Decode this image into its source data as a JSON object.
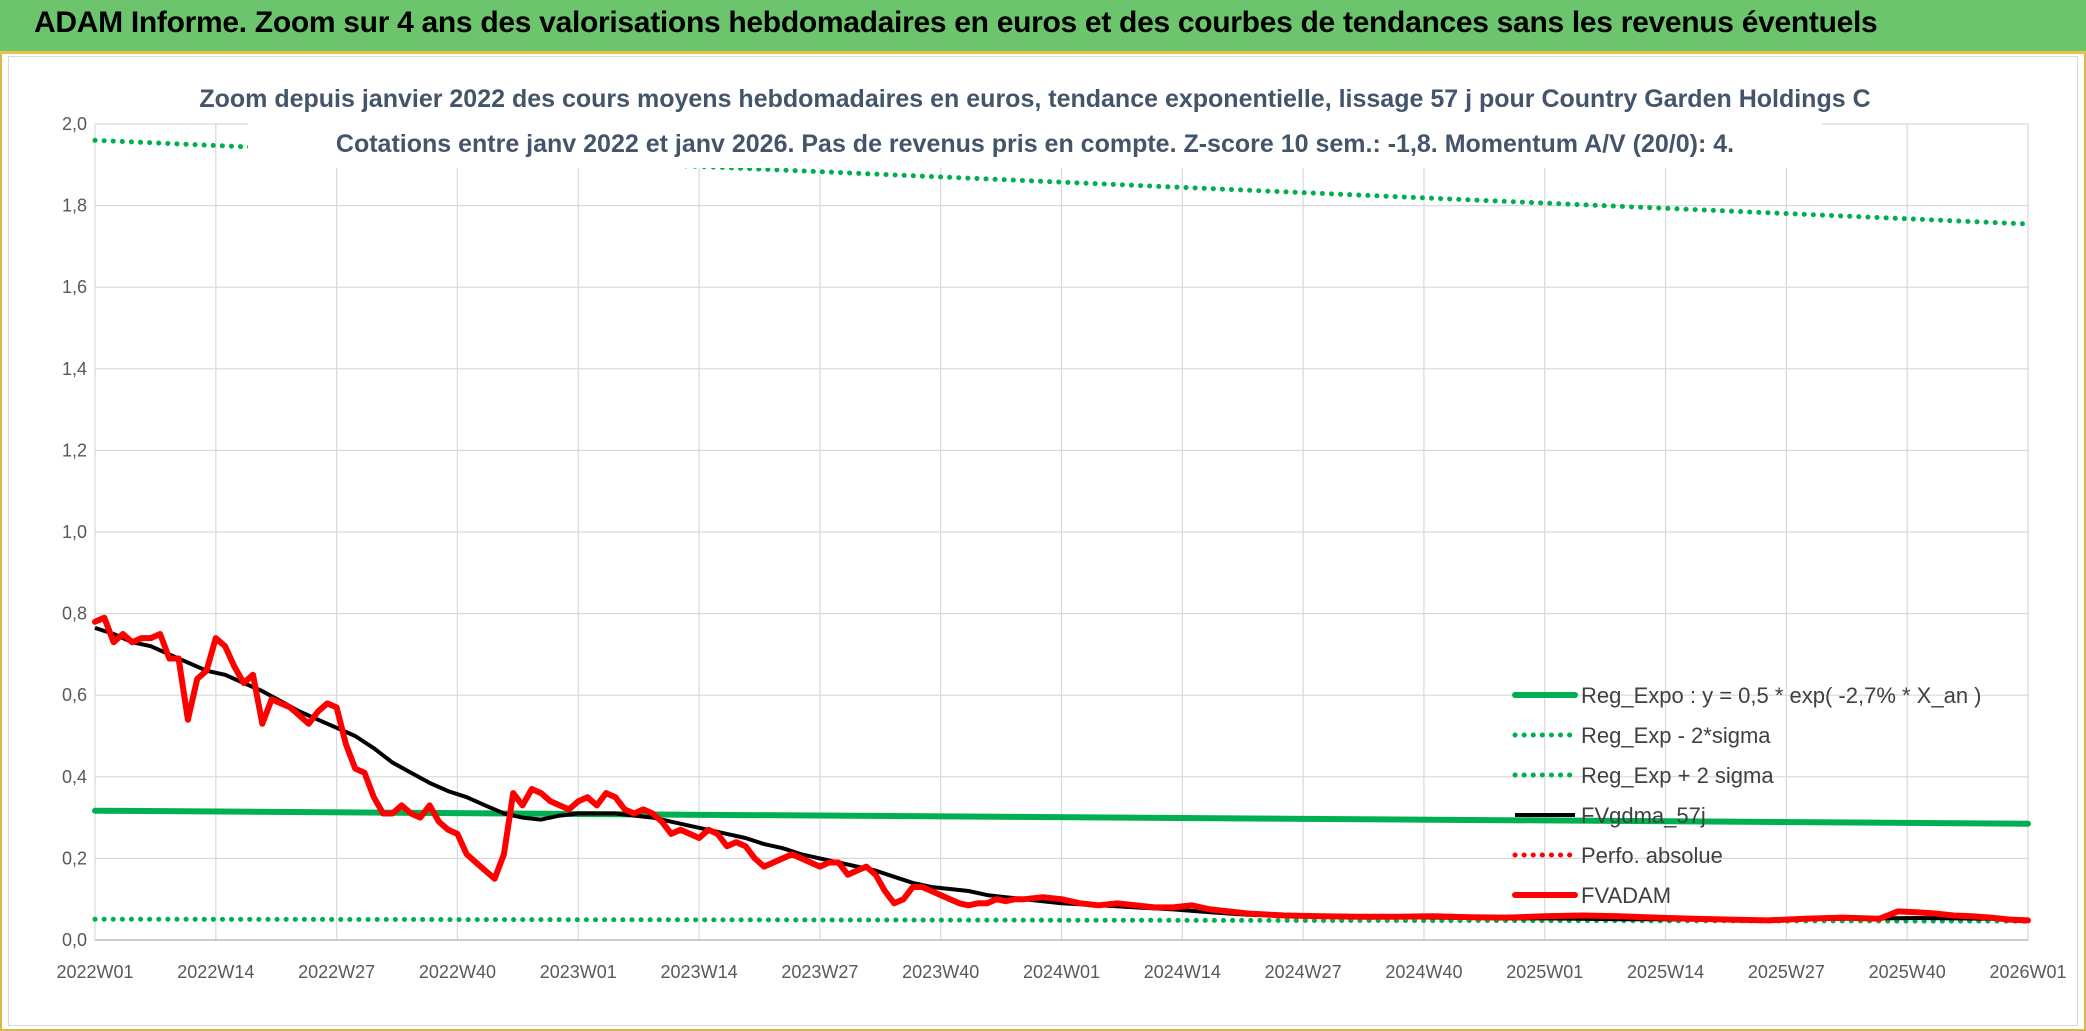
{
  "banner": {
    "title": "ADAM Informe. Zoom sur 4 ans des valorisations hebdomadaires en euros et des courbes de tendances sans les revenus éventuels"
  },
  "chart_data": {
    "type": "line",
    "title_line1": "Zoom depuis janvier 2022 des cours moyens hebdomadaires en euros, tendance exponentielle, lissage 57 j pour Country Garden Holdings C",
    "title_line2": "Cotations entre janv 2022 et janv 2026. Pas de revenus pris en compte. Z-score 10 sem.: -1,8. Momentum A/V (20/0): 4.",
    "x_tick_labels": [
      "2022W01",
      "2022W14",
      "2022W27",
      "2022W40",
      "2023W01",
      "2023W14",
      "2023W27",
      "2023W40",
      "2024W01",
      "2024W14",
      "2024W27",
      "2024W40",
      "2025W01",
      "2025W14",
      "2025W27",
      "2025W40",
      "2026W01"
    ],
    "y_tick_labels": [
      "0,0",
      "0,2",
      "0,4",
      "0,6",
      "0,8",
      "1,0",
      "1,2",
      "1,4",
      "1,6",
      "1,8",
      "2,0"
    ],
    "ylim": [
      0,
      2.0
    ],
    "x_range_weeks": [
      0,
      208
    ],
    "grid": true,
    "legend_position": "bottom-right",
    "colors": {
      "reg_expo": "#00b050",
      "reg_minus": "#00b050",
      "reg_plus": "#00b050",
      "fvgdma": "#000000",
      "perfo": "#ff0000",
      "fvadam": "#ff0000",
      "grid": "#d9d9d9"
    },
    "series": [
      {
        "key": "reg_expo",
        "name": "Reg_Expo : y = 0,5 * exp( -2,7% *  X_an )",
        "style": "solid-thick",
        "x": [
          0,
          208
        ],
        "y": [
          0.317,
          0.285
        ]
      },
      {
        "key": "reg_minus",
        "name": "Reg_Exp - 2*sigma",
        "style": "dotted",
        "x": [
          0,
          208
        ],
        "y": [
          0.051,
          0.046
        ]
      },
      {
        "key": "reg_plus",
        "name": "Reg_Exp + 2 sigma",
        "style": "dotted",
        "x": [
          0,
          208
        ],
        "y": [
          1.96,
          1.755
        ]
      },
      {
        "key": "fvgdma",
        "name": "FVgdma_57j",
        "style": "solid-medium",
        "x": [
          0,
          2,
          4,
          6,
          8,
          10,
          12,
          14,
          16,
          18,
          20,
          22,
          24,
          26,
          28,
          30,
          32,
          34,
          36,
          38,
          40,
          42,
          44,
          46,
          48,
          50,
          52,
          54,
          56,
          58,
          60,
          62,
          64,
          66,
          68,
          70,
          72,
          74,
          76,
          78,
          80,
          82,
          84,
          86,
          88,
          90,
          92,
          94,
          96,
          98,
          100,
          104,
          108,
          112,
          116,
          120,
          124,
          128,
          132,
          136,
          140,
          144,
          148,
          152,
          156,
          160,
          164,
          168,
          172,
          176,
          180,
          184,
          188,
          192,
          196,
          200,
          204,
          208
        ],
        "y": [
          0.765,
          0.75,
          0.73,
          0.72,
          0.7,
          0.68,
          0.66,
          0.65,
          0.63,
          0.61,
          0.585,
          0.56,
          0.54,
          0.52,
          0.5,
          0.47,
          0.435,
          0.41,
          0.385,
          0.365,
          0.35,
          0.33,
          0.31,
          0.3,
          0.295,
          0.305,
          0.31,
          0.31,
          0.31,
          0.305,
          0.3,
          0.29,
          0.28,
          0.27,
          0.26,
          0.25,
          0.235,
          0.225,
          0.21,
          0.2,
          0.19,
          0.18,
          0.17,
          0.155,
          0.14,
          0.13,
          0.125,
          0.12,
          0.11,
          0.105,
          0.1,
          0.09,
          0.085,
          0.08,
          0.075,
          0.068,
          0.062,
          0.06,
          0.058,
          0.057,
          0.056,
          0.055,
          0.054,
          0.053,
          0.053,
          0.052,
          0.051,
          0.051,
          0.05,
          0.05,
          0.05,
          0.051,
          0.052,
          0.053,
          0.054,
          0.053,
          0.052,
          0.05
        ]
      },
      {
        "key": "perfo",
        "name": "Perfo. absolue",
        "style": "dotted",
        "x": [],
        "y": []
      },
      {
        "key": "fvadam",
        "name": "FVADAM",
        "style": "solid-thick",
        "x": [
          0,
          1,
          2,
          3,
          4,
          5,
          6,
          7,
          8,
          9,
          10,
          11,
          12,
          13,
          14,
          15,
          16,
          17,
          18,
          19,
          20,
          21,
          22,
          23,
          24,
          25,
          26,
          27,
          28,
          29,
          30,
          31,
          32,
          33,
          34,
          35,
          36,
          37,
          38,
          39,
          40,
          41,
          42,
          43,
          44,
          45,
          46,
          47,
          48,
          49,
          50,
          51,
          52,
          53,
          54,
          55,
          56,
          57,
          58,
          59,
          60,
          61,
          62,
          63,
          64,
          65,
          66,
          67,
          68,
          69,
          70,
          71,
          72,
          73,
          74,
          75,
          76,
          77,
          78,
          79,
          80,
          81,
          82,
          83,
          84,
          85,
          86,
          87,
          88,
          89,
          90,
          91,
          92,
          93,
          94,
          95,
          96,
          97,
          98,
          99,
          100,
          102,
          104,
          106,
          108,
          110,
          112,
          114,
          116,
          118,
          120,
          124,
          128,
          132,
          136,
          140,
          144,
          148,
          152,
          156,
          160,
          164,
          168,
          172,
          176,
          180,
          184,
          188,
          192,
          194,
          196,
          198,
          200,
          202,
          204,
          206,
          208
        ],
        "y": [
          0.78,
          0.79,
          0.73,
          0.75,
          0.73,
          0.74,
          0.74,
          0.75,
          0.69,
          0.69,
          0.54,
          0.64,
          0.66,
          0.74,
          0.72,
          0.67,
          0.63,
          0.65,
          0.53,
          0.59,
          0.58,
          0.57,
          0.55,
          0.53,
          0.56,
          0.58,
          0.57,
          0.48,
          0.42,
          0.41,
          0.35,
          0.31,
          0.31,
          0.33,
          0.31,
          0.3,
          0.33,
          0.29,
          0.27,
          0.26,
          0.21,
          0.19,
          0.17,
          0.15,
          0.21,
          0.36,
          0.33,
          0.37,
          0.36,
          0.34,
          0.33,
          0.32,
          0.34,
          0.35,
          0.33,
          0.36,
          0.35,
          0.32,
          0.31,
          0.32,
          0.31,
          0.29,
          0.26,
          0.27,
          0.26,
          0.25,
          0.27,
          0.26,
          0.23,
          0.24,
          0.23,
          0.2,
          0.18,
          0.19,
          0.2,
          0.21,
          0.2,
          0.19,
          0.18,
          0.19,
          0.19,
          0.16,
          0.17,
          0.18,
          0.16,
          0.12,
          0.09,
          0.1,
          0.13,
          0.13,
          0.12,
          0.11,
          0.1,
          0.09,
          0.085,
          0.09,
          0.09,
          0.1,
          0.095,
          0.1,
          0.1,
          0.105,
          0.1,
          0.09,
          0.085,
          0.09,
          0.085,
          0.08,
          0.08,
          0.085,
          0.075,
          0.065,
          0.06,
          0.058,
          0.057,
          0.057,
          0.058,
          0.056,
          0.055,
          0.058,
          0.06,
          0.058,
          0.055,
          0.052,
          0.05,
          0.048,
          0.052,
          0.055,
          0.052,
          0.07,
          0.068,
          0.065,
          0.06,
          0.058,
          0.055,
          0.05,
          0.048
        ]
      }
    ]
  }
}
